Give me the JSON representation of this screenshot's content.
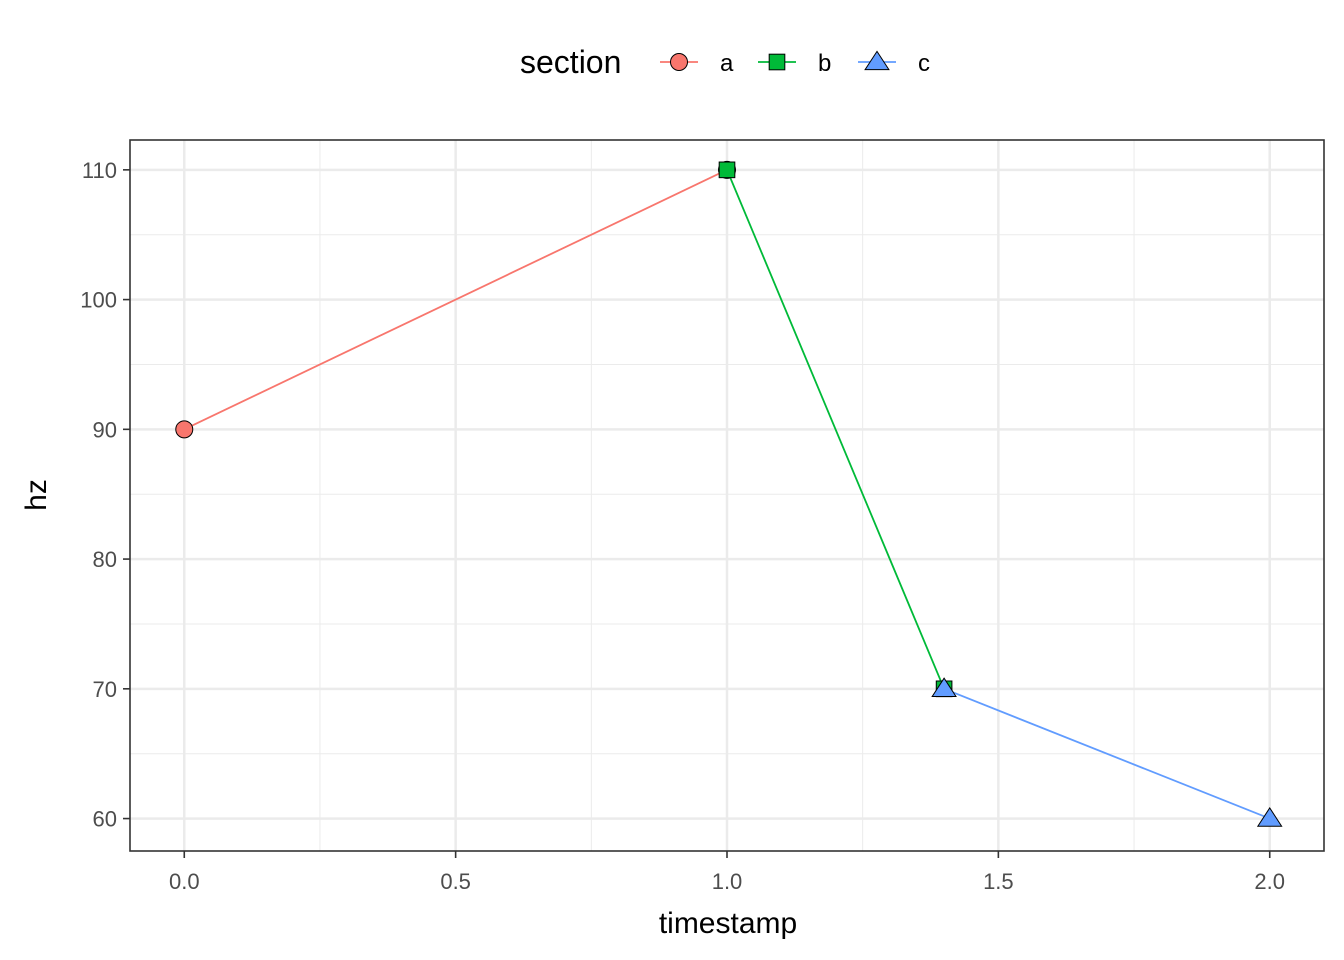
{
  "chart_data": {
    "type": "line",
    "xlabel": "timestamp",
    "ylabel": "hz",
    "xlim": [
      -0.1,
      2.1
    ],
    "ylim": [
      57.5,
      112.3
    ],
    "x_ticks": [
      0.0,
      0.5,
      1.0,
      1.5,
      2.0
    ],
    "x_tick_labels": [
      "0.0",
      "0.5",
      "1.0",
      "1.5",
      "2.0"
    ],
    "y_ticks": [
      60,
      70,
      80,
      90,
      100,
      110
    ],
    "y_tick_labels": [
      "60",
      "70",
      "80",
      "90",
      "100",
      "110"
    ],
    "grid": true,
    "legend": {
      "title": "section",
      "position": "top",
      "entries": [
        "a",
        "b",
        "c"
      ]
    },
    "series": [
      {
        "name": "a",
        "color": "#F8766D",
        "marker": "circle",
        "x": [
          0.0,
          1.0
        ],
        "y": [
          90,
          110
        ]
      },
      {
        "name": "b",
        "color": "#00BA38",
        "marker": "square",
        "x": [
          1.0,
          1.4
        ],
        "y": [
          110,
          70
        ]
      },
      {
        "name": "c",
        "color": "#619CFF",
        "marker": "triangle",
        "x": [
          1.4,
          2.0
        ],
        "y": [
          70,
          60
        ]
      }
    ]
  }
}
